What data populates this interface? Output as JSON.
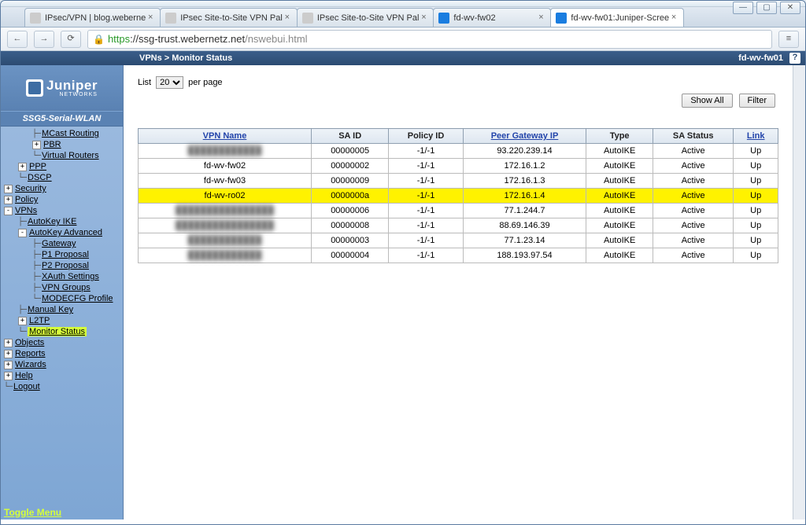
{
  "browser": {
    "tabs": [
      {
        "label": "IPsec/VPN | blog.weberne",
        "favicon": "generic"
      },
      {
        "label": "IPsec Site-to-Site VPN Pal",
        "favicon": "generic"
      },
      {
        "label": "IPsec Site-to-Site VPN Pal",
        "favicon": "generic"
      },
      {
        "label": "fd-wv-fw02",
        "favicon": "jn"
      },
      {
        "label": "fd-wv-fw01:Juniper-Scree",
        "favicon": "jn",
        "active": true
      }
    ],
    "url_https": "https",
    "url_host": "://ssg-trust.webernetz.net",
    "url_path": "/nswebui.html"
  },
  "header": {
    "breadcrumb": "VPNs > Monitor Status",
    "hostname": "fd-wv-fw01",
    "help": "?"
  },
  "sidebar": {
    "logo": "Juniper",
    "logo_sub": "NETWORKS",
    "device": "SSG5-Serial-WLAN",
    "items": [
      {
        "level": 3,
        "label": "MCast Routing",
        "expander": null,
        "tree": "├"
      },
      {
        "level": 3,
        "label": "PBR",
        "expander": "+",
        "tree": "├"
      },
      {
        "level": 3,
        "label": "Virtual Routers",
        "expander": null,
        "tree": "└"
      },
      {
        "level": 2,
        "label": "PPP",
        "expander": "+",
        "tree": ""
      },
      {
        "level": 2,
        "label": "DSCP",
        "expander": null,
        "tree": "└"
      },
      {
        "level": 1,
        "label": "Security",
        "expander": "+"
      },
      {
        "level": 1,
        "label": "Policy",
        "expander": "+"
      },
      {
        "level": 1,
        "label": "VPNs",
        "expander": "-"
      },
      {
        "level": 2,
        "label": "AutoKey IKE",
        "expander": null,
        "tree": "├"
      },
      {
        "level": 2,
        "label": "AutoKey Advanced",
        "expander": "-",
        "tree": "├"
      },
      {
        "level": 3,
        "label": "Gateway",
        "expander": null,
        "tree": "├"
      },
      {
        "level": 3,
        "label": "P1 Proposal",
        "expander": null,
        "tree": "├"
      },
      {
        "level": 3,
        "label": "P2 Proposal",
        "expander": null,
        "tree": "├"
      },
      {
        "level": 3,
        "label": "XAuth Settings",
        "expander": null,
        "tree": "├"
      },
      {
        "level": 3,
        "label": "VPN Groups",
        "expander": null,
        "tree": "├"
      },
      {
        "level": 3,
        "label": "MODECFG Profile",
        "expander": null,
        "tree": "└"
      },
      {
        "level": 2,
        "label": "Manual Key",
        "expander": null,
        "tree": "├"
      },
      {
        "level": 2,
        "label": "L2TP",
        "expander": "+",
        "tree": "├"
      },
      {
        "level": 2,
        "label": "Monitor Status",
        "expander": null,
        "tree": "└",
        "selected": true
      },
      {
        "level": 1,
        "label": "Objects",
        "expander": "+"
      },
      {
        "level": 1,
        "label": "Reports",
        "expander": "+"
      },
      {
        "level": 1,
        "label": "Wizards",
        "expander": "+"
      },
      {
        "level": 1,
        "label": "Help",
        "expander": "+"
      },
      {
        "level": 1,
        "label": "Logout",
        "expander": null,
        "tree": "└"
      }
    ],
    "toggle": "Toggle Menu"
  },
  "main": {
    "list_label": "List",
    "per_page_label": "per page",
    "per_page_value": "20",
    "buttons": {
      "show_all": "Show All",
      "filter": "Filter"
    }
  },
  "table": {
    "columns": [
      "VPN Name",
      "SA ID",
      "Policy ID",
      "Peer Gateway IP",
      "Type",
      "SA Status",
      "Link"
    ],
    "header_links": {
      "vpn_name": true,
      "peer_gateway": true,
      "link": true
    },
    "rows": [
      {
        "name": "████████████",
        "blurred": true,
        "sa": "00000005",
        "pid": "-1/-1",
        "peer": "93.220.239.14",
        "type": "AutoIKE",
        "status": "Active",
        "link": "Up"
      },
      {
        "name": "fd-wv-fw02",
        "sa": "00000002",
        "pid": "-1/-1",
        "peer": "172.16.1.2",
        "type": "AutoIKE",
        "status": "Active",
        "link": "Up"
      },
      {
        "name": "fd-wv-fw03",
        "sa": "00000009",
        "pid": "-1/-1",
        "peer": "172.16.1.3",
        "type": "AutoIKE",
        "status": "Active",
        "link": "Up"
      },
      {
        "name": "fd-wv-ro02",
        "sa": "0000000a",
        "pid": "-1/-1",
        "peer": "172.16.1.4",
        "type": "AutoIKE",
        "status": "Active",
        "link": "Up",
        "highlight": true
      },
      {
        "name": "████████████████",
        "blurred": true,
        "sa": "00000006",
        "pid": "-1/-1",
        "peer": "77.1.244.7",
        "type": "AutoIKE",
        "status": "Active",
        "link": "Up"
      },
      {
        "name": "████████████████",
        "blurred": true,
        "sa": "00000008",
        "pid": "-1/-1",
        "peer": "88.69.146.39",
        "type": "AutoIKE",
        "status": "Active",
        "link": "Up"
      },
      {
        "name": "████████████",
        "blurred": true,
        "sa": "00000003",
        "pid": "-1/-1",
        "peer": "77.1.23.14",
        "type": "AutoIKE",
        "status": "Active",
        "link": "Up"
      },
      {
        "name": "████████████",
        "blurred": true,
        "sa": "00000004",
        "pid": "-1/-1",
        "peer": "188.193.97.54",
        "type": "AutoIKE",
        "status": "Active",
        "link": "Up"
      }
    ]
  },
  "colors": {
    "header_bg": "#2c4b72",
    "sidebar_bg": "#7ea6d4",
    "highlight": "#fff200",
    "selected_nav": "#d6ff3a"
  }
}
